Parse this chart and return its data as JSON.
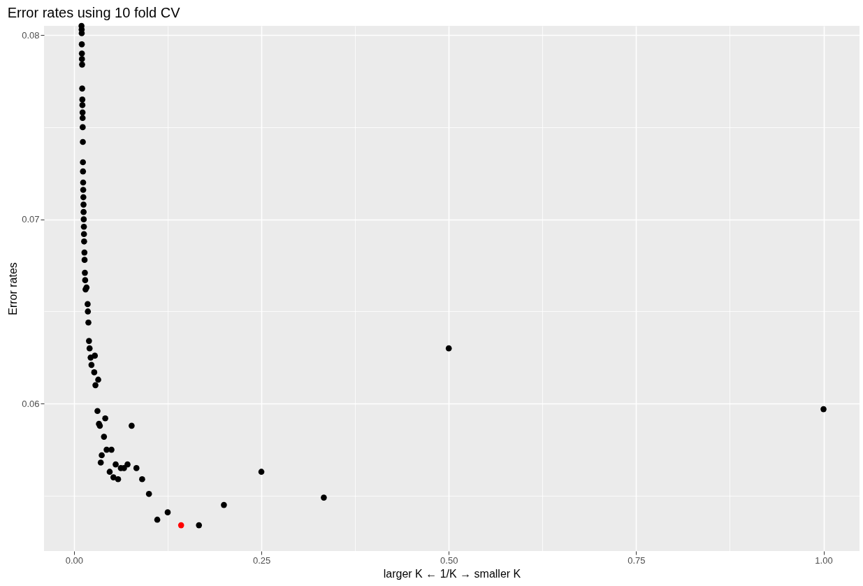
{
  "chart_data": {
    "type": "scatter",
    "title": "Error rates using 10 fold CV",
    "xlabel": "larger K ← 1/K → smaller K",
    "ylabel": "Error rates",
    "x": [
      0.01,
      0.0102,
      0.0103,
      0.0104,
      0.0105,
      0.0106,
      0.0108,
      0.0109,
      0.0111,
      0.0112,
      0.0114,
      0.0115,
      0.0116,
      0.0118,
      0.0119,
      0.012,
      0.0122,
      0.0123,
      0.0125,
      0.0127,
      0.0128,
      0.013,
      0.0132,
      0.0133,
      0.0135,
      0.0139,
      0.0141,
      0.0145,
      0.0149,
      0.0154,
      0.0167,
      0.0182,
      0.0185,
      0.0192,
      0.02,
      0.0208,
      0.0278,
      0.0222,
      0.0233,
      0.0323,
      0.027,
      0.0286,
      0.0313,
      0.0417,
      0.0345,
      0.0333,
      0.0769,
      0.04,
      0.0435,
      0.05,
      0.037,
      0.0357,
      0.0556,
      0.0714,
      0.0667,
      0.0625,
      0.0833,
      0.0476,
      0.0526,
      0.0588,
      0.0909,
      0.1,
      0.1111,
      0.125,
      0.1429,
      0.1667,
      0.2,
      0.25,
      0.3333,
      0.5,
      1
    ],
    "values": [
      0.0805,
      0.0803,
      0.0801,
      0.0795,
      0.079,
      0.0787,
      0.0784,
      0.0771,
      0.0765,
      0.0762,
      0.0758,
      0.0755,
      0.075,
      0.0742,
      0.0731,
      0.0726,
      0.072,
      0.0716,
      0.0712,
      0.0708,
      0.0704,
      0.07,
      0.0696,
      0.0692,
      0.0688,
      0.0682,
      0.0678,
      0.0671,
      0.0667,
      0.0662,
      0.0663,
      0.0654,
      0.065,
      0.0644,
      0.0634,
      0.063,
      0.0626,
      0.0625,
      0.0621,
      0.0613,
      0.0617,
      0.061,
      0.0596,
      0.0592,
      0.0588,
      0.0589,
      0.0588,
      0.0582,
      0.0575,
      0.0575,
      0.0572,
      0.0568,
      0.0567,
      0.0567,
      0.0565,
      0.0565,
      0.0565,
      0.0563,
      0.056,
      0.0559,
      0.0559,
      0.0551,
      0.0537,
      0.0541,
      0.0534,
      0.0534,
      0.0545,
      0.0563,
      0.0549,
      0.063,
      0.0597
    ],
    "colors": [
      "#000000",
      "#000000",
      "#000000",
      "#000000",
      "#000000",
      "#000000",
      "#000000",
      "#000000",
      "#000000",
      "#000000",
      "#000000",
      "#000000",
      "#000000",
      "#000000",
      "#000000",
      "#000000",
      "#000000",
      "#000000",
      "#000000",
      "#000000",
      "#000000",
      "#000000",
      "#000000",
      "#000000",
      "#000000",
      "#000000",
      "#000000",
      "#000000",
      "#000000",
      "#000000",
      "#000000",
      "#000000",
      "#000000",
      "#000000",
      "#000000",
      "#000000",
      "#000000",
      "#000000",
      "#000000",
      "#000000",
      "#000000",
      "#000000",
      "#000000",
      "#000000",
      "#000000",
      "#000000",
      "#000000",
      "#000000",
      "#000000",
      "#000000",
      "#000000",
      "#000000",
      "#000000",
      "#000000",
      "#000000",
      "#000000",
      "#000000",
      "#000000",
      "#000000",
      "#000000",
      "#000000",
      "#000000",
      "#000000",
      "#000000",
      "#ff0000",
      "#000000",
      "#000000",
      "#000000",
      "#000000",
      "#000000",
      "#000000"
    ],
    "xlim": [
      -0.04,
      1.048
    ],
    "ylim": [
      0.052,
      0.0805
    ],
    "xticks": [
      {
        "value": 0,
        "label": "0.00"
      },
      {
        "value": 0.125,
        "label": null
      },
      {
        "value": 0.25,
        "label": "0.25"
      },
      {
        "value": 0.375,
        "label": null
      },
      {
        "value": 0.5,
        "label": "0.50"
      },
      {
        "value": 0.625,
        "label": null
      },
      {
        "value": 0.75,
        "label": "0.75"
      },
      {
        "value": 0.875,
        "label": null
      },
      {
        "value": 1,
        "label": "1.00"
      }
    ],
    "yticks": [
      {
        "value": 0.055,
        "label": null
      },
      0.06,
      {
        "value": 0.065,
        "label": null
      },
      0.07,
      {
        "value": 0.075,
        "label": null
      },
      0.08
    ],
    "grid": true
  }
}
